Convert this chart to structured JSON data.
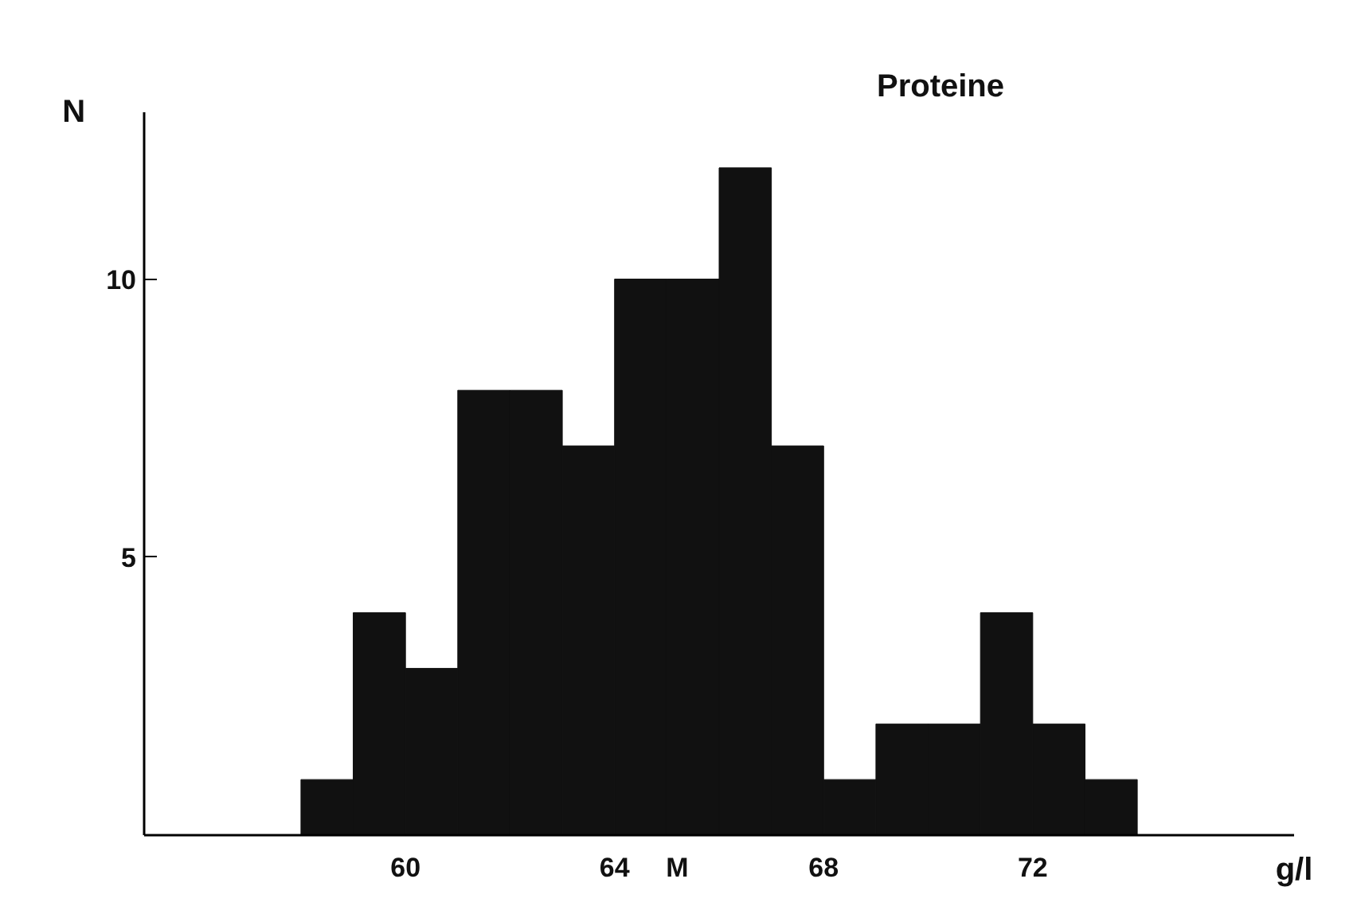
{
  "chart_data": {
    "type": "histogram",
    "title": "Proteine",
    "xlabel": "g/l",
    "ylabel": "N",
    "bins": [
      58,
      59,
      60,
      61,
      62,
      63,
      64,
      65,
      66,
      67,
      68,
      69,
      70,
      71,
      72,
      73,
      74
    ],
    "values": [
      1,
      4,
      3,
      8,
      8,
      7,
      10,
      10,
      12,
      7,
      1,
      2,
      2,
      4,
      2,
      1
    ],
    "color": "#111111",
    "xlim": [
      55,
      77
    ],
    "ylim": [
      0,
      13
    ],
    "xticks": [
      60,
      64,
      {
        "value": 65.2,
        "label": "M"
      },
      68,
      72
    ],
    "yticks": [
      5,
      10
    ],
    "grid": false
  }
}
